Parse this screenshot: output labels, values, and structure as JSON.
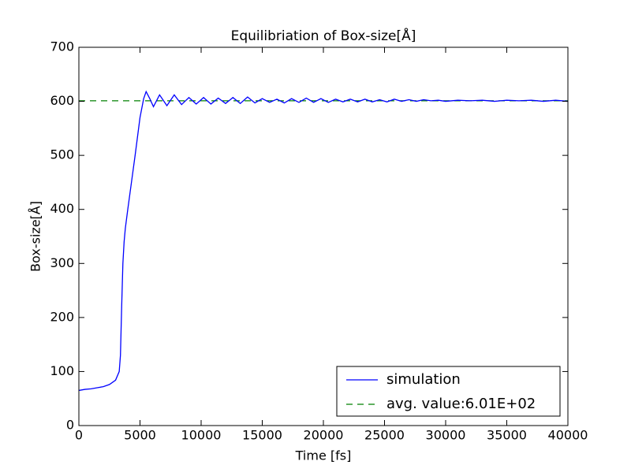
{
  "chart_data": {
    "type": "line",
    "title": "Equilibriation of Box-size[Å]",
    "x_label": "Time [fs]",
    "y_label": "Box-size[Å]",
    "xlim": [
      0,
      40000
    ],
    "xticks": [
      0,
      5000,
      10000,
      15000,
      20000,
      25000,
      30000,
      35000,
      40000
    ],
    "ylim": [
      0,
      700
    ],
    "yticks": [
      0,
      100,
      200,
      300,
      400,
      500,
      600,
      700
    ],
    "grid": false,
    "legend": "lower right",
    "series": [
      {
        "name": "simulation",
        "color": "#0000ff",
        "style": "solid",
        "x": [
          0,
          500,
          1000,
          1500,
          2000,
          2500,
          3000,
          3300,
          3400,
          3500,
          3600,
          3700,
          3800,
          4000,
          4300,
          4600,
          5000,
          5300,
          5500,
          5800,
          6100,
          6600,
          7200,
          7800,
          8400,
          9000,
          9600,
          10200,
          10800,
          11400,
          12000,
          12600,
          13200,
          13800,
          14400,
          15000,
          15600,
          16200,
          16800,
          17400,
          18000,
          18600,
          19200,
          19800,
          20400,
          21000,
          21600,
          22200,
          22800,
          23400,
          24000,
          24600,
          25200,
          25800,
          26400,
          27000,
          27600,
          28200,
          28800,
          29400,
          30000,
          31000,
          32000,
          33000,
          34000,
          35000,
          36000,
          37000,
          38000,
          39000,
          40000
        ],
        "values": [
          65,
          67,
          68,
          70,
          72,
          76,
          84,
          100,
          130,
          220,
          300,
          340,
          365,
          400,
          450,
          500,
          570,
          605,
          618,
          605,
          590,
          612,
          592,
          612,
          594,
          607,
          595,
          607,
          595,
          606,
          596,
          607,
          596,
          608,
          597,
          605,
          598,
          604,
          597,
          605,
          598,
          606,
          598,
          605,
          598,
          604,
          599,
          604,
          599,
          604,
          599,
          603,
          599,
          604,
          600,
          603,
          600,
          603,
          601,
          602,
          600,
          602,
          601,
          602,
          600,
          602,
          601,
          602,
          600,
          602,
          600
        ]
      },
      {
        "name": "avg. value:6.01E+02",
        "color": "#008000",
        "style": "dashed",
        "x": [
          0,
          40000
        ],
        "values": [
          601,
          601
        ]
      }
    ]
  }
}
